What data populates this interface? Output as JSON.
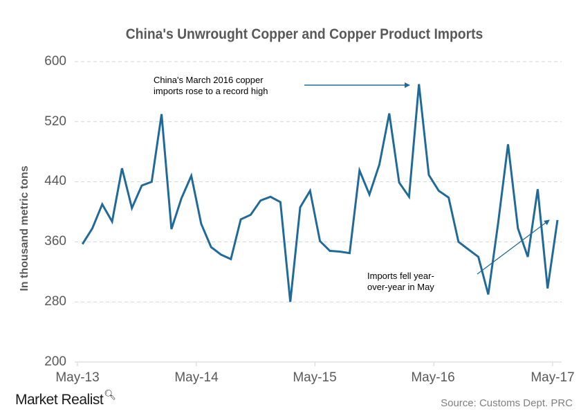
{
  "chart_data": {
    "type": "line",
    "title": "China's Unwrought Copper and Copper Product Imports",
    "xlabel": "",
    "ylabel": "In thousand metric tons",
    "ylim": [
      200,
      600
    ],
    "yticks": [
      600,
      520,
      440,
      360,
      280,
      200
    ],
    "xtick_labels": [
      "May-13",
      "May-14",
      "May-15",
      "May-16",
      "May-17"
    ],
    "grid": "horizontal dashed",
    "legend": "none",
    "line_color": "#1f6a99",
    "x": [
      "May-13",
      "Jun-13",
      "Jul-13",
      "Aug-13",
      "Sep-13",
      "Oct-13",
      "Nov-13",
      "Dec-13",
      "Jan-14",
      "Feb-14",
      "Mar-14",
      "Apr-14",
      "May-14",
      "Jun-14",
      "Jul-14",
      "Aug-14",
      "Sep-14",
      "Oct-14",
      "Nov-14",
      "Dec-14",
      "Jan-15",
      "Feb-15",
      "Mar-15",
      "Apr-15",
      "May-15",
      "Jun-15",
      "Jul-15",
      "Aug-15",
      "Sep-15",
      "Oct-15",
      "Nov-15",
      "Dec-15",
      "Jan-16",
      "Feb-16",
      "Mar-16",
      "Apr-16",
      "May-16",
      "Jun-16",
      "Jul-16",
      "Aug-16",
      "Sep-16",
      "Oct-16",
      "Nov-16",
      "Dec-16",
      "Jan-17",
      "Feb-17",
      "Mar-17",
      "Apr-17",
      "May-17"
    ],
    "series": [
      {
        "name": "Imports",
        "values": [
          357,
          378,
          410,
          387,
          458,
          405,
          435,
          440,
          530,
          377,
          418,
          448,
          384,
          353,
          343,
          337,
          390,
          396,
          415,
          420,
          413,
          280,
          406,
          428,
          361,
          348,
          347,
          345,
          455,
          423,
          463,
          531,
          439,
          420,
          570,
          449,
          428,
          419,
          360,
          350,
          340,
          290,
          385,
          490,
          378,
          340,
          430,
          298,
          389
        ]
      }
    ],
    "annotations": [
      {
        "text": "China's March 2016 copper imports rose to a record high",
        "points_to": "Mar-16"
      },
      {
        "text": "Imports fell year-over-year in May",
        "points_to": "May-17"
      }
    ]
  },
  "header": {
    "title": "China's Unwrought Copper and Copper Product Imports"
  },
  "axes": {
    "ylabel": "In thousand metric tons",
    "yticks": [
      "600",
      "520",
      "440",
      "360",
      "280",
      "200"
    ],
    "xticks": [
      "May-13",
      "May-14",
      "May-15",
      "May-16",
      "May-17"
    ]
  },
  "annotations": {
    "record_high_line1": "China's March 2016 copper",
    "record_high_line2": "imports rose to a record high",
    "yoy_line1": "Imports fell year-",
    "yoy_line2": "over-year  in May"
  },
  "footer": {
    "brand": "Market Realist",
    "brand_icon": "magnifier-chart-icon",
    "source": "Source: Customs Dept. PRC"
  }
}
